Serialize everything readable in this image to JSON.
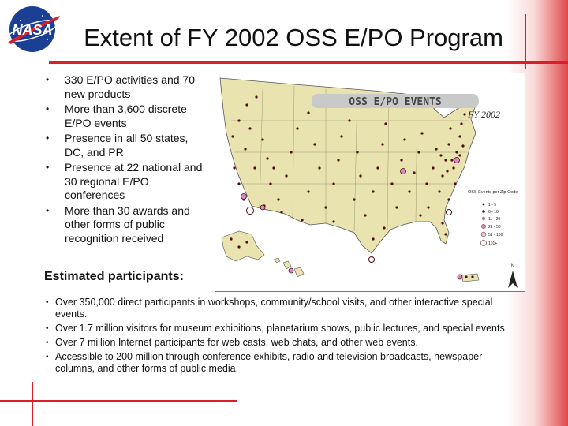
{
  "title": "Extent of FY 2002 OSS E/PO Program",
  "logo": {
    "text": "NASA"
  },
  "bullets": [
    "330 E/PO activities and 70 new products",
    "More than 3,600 discrete E/PO events",
    "Presence in all 50 states, DC, and PR",
    "Presence at 22 national and 30 regional E/PO conferences",
    "More than 30 awards and other forms of public recognition received"
  ],
  "estimated_heading": "Estimated participants:",
  "participant_items": [
    "Over 350,000 direct participants in workshops, community/school visits, and other interactive special events.",
    "Over 1.7 million visitors for museum exhibitions, planetarium shows, public lectures, and special events.",
    "Over 7 million Internet participants for web casts, web chats, and other web events.",
    "Accessible to 200 million through conference exhibits, radio and television broadcasts, newspaper columns, and other forms of public media."
  ],
  "map": {
    "banner": "OSS E/PO EVENTS",
    "year": "FY 2002",
    "legend_title": "OSS Events per Zip Code",
    "legend_items": [
      "1 - 5",
      "6 - 10",
      "11 - 20",
      "21 - 50",
      "51 - 100",
      "101+"
    ],
    "north_label": "N",
    "colors": {
      "land": "#e9e3b0",
      "dot": "#4a0d0d",
      "accent": "#d81f2a"
    }
  }
}
